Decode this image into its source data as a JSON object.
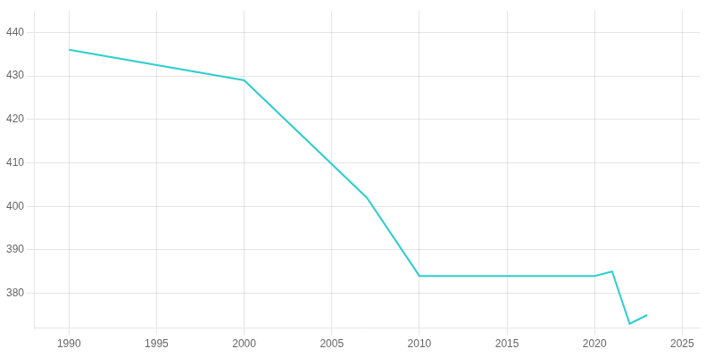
{
  "chart_data": {
    "type": "line",
    "x": [
      1990,
      2000,
      2007,
      2010,
      2020,
      2021,
      2022,
      2023
    ],
    "values": [
      436,
      429,
      402,
      384,
      384,
      385,
      373,
      375
    ],
    "color": "#2ECECE",
    "xlim": [
      1988,
      2026
    ],
    "xticks": [
      1990,
      1995,
      2000,
      2005,
      2010,
      2015,
      2020,
      2025
    ],
    "ylim": [
      372,
      445
    ],
    "yticks": [
      380,
      390,
      400,
      410,
      420,
      430,
      440
    ],
    "grid": true
  }
}
